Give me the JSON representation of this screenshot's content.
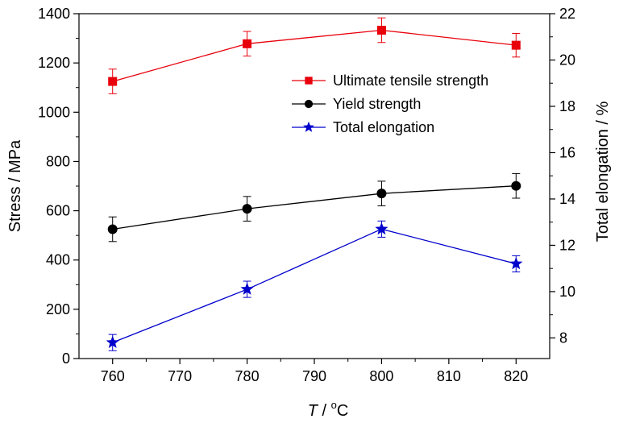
{
  "chart_data": {
    "type": "line",
    "x": [
      760,
      780,
      800,
      820
    ],
    "xlabel": {
      "italic": "T",
      "rest": " / ",
      "unit_sup": "o",
      "unit": "C"
    },
    "xlim": [
      755,
      825
    ],
    "xticks": [
      760,
      770,
      780,
      790,
      800,
      810,
      820
    ],
    "ylabel_left": "Stress / MPa",
    "ylim_left": [
      0,
      1400
    ],
    "yticks_left": [
      0,
      200,
      400,
      600,
      800,
      1000,
      1200,
      1400
    ],
    "ylabel_right": "Total elongation / %",
    "ylim_right": [
      7.11,
      22
    ],
    "yticks_right": [
      8,
      10,
      12,
      14,
      16,
      18,
      20,
      22
    ],
    "grid": false,
    "legend_position": "top-right",
    "series": [
      {
        "name": "Ultimate tensile strength",
        "axis": "left",
        "color": "#e8000b",
        "marker": "square",
        "values": [
          1125,
          1278,
          1333,
          1272
        ],
        "errors": [
          50,
          50,
          50,
          48
        ]
      },
      {
        "name": "Yield strength",
        "axis": "left",
        "color": "#000000",
        "marker": "circle",
        "values": [
          525,
          608,
          670,
          701
        ],
        "errors": [
          50,
          50,
          50,
          50
        ]
      },
      {
        "name": "Total elongation",
        "axis": "right",
        "color": "#0000cc",
        "marker": "star",
        "values": [
          7.8,
          10.1,
          12.7,
          11.2
        ],
        "errors": [
          0.35,
          0.35,
          0.35,
          0.35
        ]
      }
    ]
  }
}
